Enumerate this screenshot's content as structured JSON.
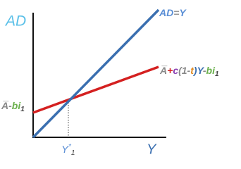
{
  "axes": {
    "y_label": "AD",
    "x_label": "Y"
  },
  "lines": [
    {
      "label": [
        "AD",
        "=",
        "Y"
      ]
    },
    {
      "label": [
        "A̅",
        "+",
        "c",
        "(1-",
        "t",
        ")Y",
        "-",
        "b",
        "i",
        "1"
      ]
    }
  ],
  "intercept_label": [
    "A̅",
    "-",
    "b",
    "i",
    "1"
  ],
  "equilibrium_label": [
    "Y",
    "*",
    "1"
  ]
}
